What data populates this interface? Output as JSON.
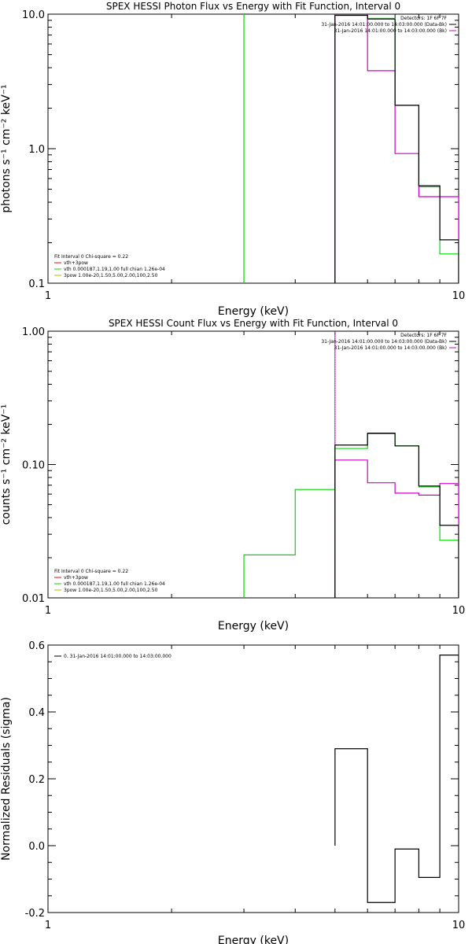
{
  "colors": {
    "data": "#000000",
    "magenta": "#cc00cc",
    "green": "#00dd00",
    "red": "#ff0000",
    "yellow": "#bbbb00",
    "background": "#ffffff"
  },
  "chart_data": [
    {
      "type": "line",
      "title": "SPEX HESSI Photon Flux vs Energy with Fit Function, Interval 0",
      "xlabel": "Energy (keV)",
      "ylabel": "photons s⁻¹ cm⁻² keV⁻¹",
      "xscale": "log",
      "yscale": "log",
      "xlim": [
        1,
        10
      ],
      "ylim": [
        0.1,
        10
      ],
      "xticks": [
        "1",
        "10"
      ],
      "yticks": [
        "0.1",
        "1.0",
        "10.0"
      ],
      "legend_topright": [
        "Detectors: 1F 6F 7F",
        "31-Jan-2016 14:01:00.000 to 14:03:00.000 (Data-Bk)",
        "31-Jan-2016 14:01:00.000 to 14:03:00.000 (Bk)"
      ],
      "legend_bottomleft": [
        "Fit Interval 0   Chi-square = 0.22",
        "vth+3pow",
        "vth 0.000187,1.19,1.00  full chian 1.26e-04",
        "3pow 1.00e-20,1.50,5.00,2.00,100,2.50"
      ],
      "series": [
        {
          "name": "Data-Bk",
          "color": "#000000",
          "edges": [
            5,
            6,
            7,
            8,
            9,
            10
          ],
          "values": [
            9.8,
            9.2,
            2.1,
            0.53,
            0.21
          ]
        },
        {
          "name": "Bk",
          "color": "#cc00cc",
          "edges": [
            5,
            6,
            7,
            8,
            9,
            10
          ],
          "values": [
            10.2,
            3.8,
            0.92,
            0.44,
            0.44
          ]
        },
        {
          "name": "vth+3pow",
          "color": "#00dd00",
          "edges": [
            3,
            4,
            5,
            6,
            7,
            8,
            9,
            10
          ],
          "values": [
            12,
            12,
            10.1,
            9.3,
            2.1,
            0.52,
            0.165
          ]
        }
      ],
      "vlines": [
        {
          "x": 5,
          "color": "#cc00cc",
          "style": "solid"
        }
      ]
    },
    {
      "type": "line",
      "title": "SPEX HESSI Count Flux vs Energy with Fit Function, Interval 0",
      "xlabel": "Energy (keV)",
      "ylabel": "counts s⁻¹ cm⁻² keV⁻¹",
      "xscale": "log",
      "yscale": "log",
      "xlim": [
        1,
        10
      ],
      "ylim": [
        0.01,
        1
      ],
      "xticks": [
        "1",
        "10"
      ],
      "yticks": [
        "0.01",
        "0.10",
        "1.00"
      ],
      "legend_topright": [
        "Detectors: 1F 6F 7F",
        "31-Jan-2016 14:01:00.000 to 14:03:00.000 (Data-Bk)",
        "31-Jan-2016 14:01:00.000 to 14:03:00.000 (Bk)"
      ],
      "legend_bottomleft": [
        "Fit Interval 0   Chi-square = 0.22",
        "vth+3pow",
        "vth 0.000187,1.19,1.00  full chian 1.26e-04",
        "3pow 1.00e-20,1.50,5.00,2.00,100,2.50"
      ],
      "series": [
        {
          "name": "Data-Bk",
          "color": "#000000",
          "edges": [
            5,
            6,
            7,
            8,
            9,
            10
          ],
          "values": [
            0.14,
            0.172,
            0.138,
            0.069,
            0.035
          ]
        },
        {
          "name": "Bk",
          "color": "#cc00cc",
          "edges": [
            5,
            6,
            7,
            8,
            9,
            10
          ],
          "values": [
            0.108,
            0.073,
            0.061,
            0.059,
            0.072
          ]
        },
        {
          "name": "vth+3pow",
          "color": "#00dd00",
          "edges": [
            3,
            4,
            5,
            6,
            7,
            8,
            9,
            10
          ],
          "values": [
            0.021,
            0.065,
            0.132,
            0.17,
            0.138,
            0.068,
            0.027
          ]
        }
      ],
      "vlines": [
        {
          "x": 5,
          "color": "#000000",
          "style": "dotted"
        },
        {
          "x": 5,
          "color": "#cc00cc",
          "style": "solid"
        }
      ]
    },
    {
      "type": "line",
      "title": "",
      "xlabel": "Energy (keV)",
      "ylabel": "Normalized Residuals (sigma)",
      "xscale": "log",
      "yscale": "linear",
      "xlim": [
        1,
        10
      ],
      "ylim": [
        -0.2,
        0.6
      ],
      "xticks": [
        "1",
        "10"
      ],
      "yticks": [
        "-0.2",
        "0.0",
        "0.2",
        "0.4",
        "0.6"
      ],
      "legend_topleft": [
        "0. 31-Jan-2016 14:01:00.000 to 14:03:00.000"
      ],
      "series": [
        {
          "name": "0. 31-Jan-2016 14:01:00.000 to 14:03:00.000",
          "color": "#000000",
          "edges": [
            5,
            6,
            7,
            8,
            9,
            10
          ],
          "values": [
            0.29,
            -0.17,
            -0.01,
            -0.095,
            0.57
          ]
        }
      ]
    }
  ]
}
